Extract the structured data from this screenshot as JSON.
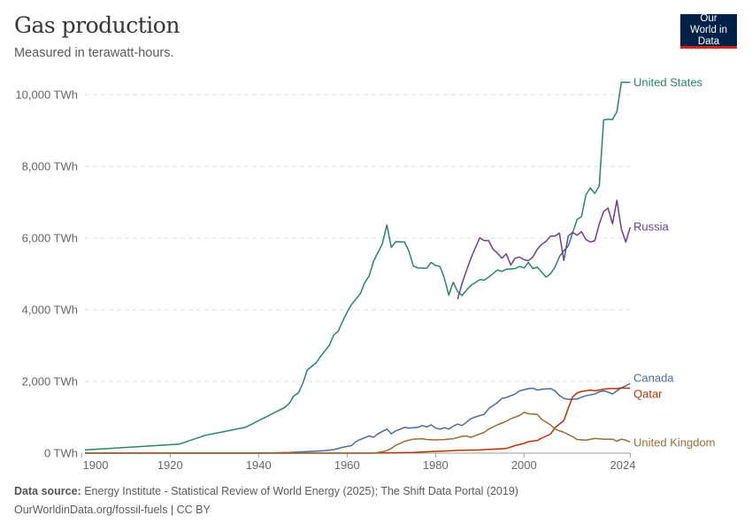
{
  "header": {
    "title": "Gas production",
    "subtitle": "Measured in terawatt-hours.",
    "logo": "Our World in Data"
  },
  "footer": {
    "source_label": "Data source:",
    "source": "Energy Institute - Statistical Review of World Energy (2025); The Shift Data Portal (2019)",
    "url": "OurWorldinData.org/fossil-fuels | CC BY"
  },
  "chart_data": {
    "type": "line",
    "title": "Gas production",
    "subtitle": "Measured in terawatt-hours.",
    "unit": "TWh",
    "xlim": [
      1900,
      2024
    ],
    "ylim": [
      0,
      10400
    ],
    "yticks": [
      0,
      2000,
      4000,
      6000,
      8000,
      10000
    ],
    "ytick_labels": [
      "0 TWh",
      "2,000 TWh",
      "4,000 TWh",
      "6,000 TWh",
      "8,000 TWh",
      "10,000 TWh"
    ],
    "xticks": [
      1900,
      1920,
      1940,
      1960,
      1980,
      2000,
      2024
    ],
    "xtick_labels": [
      "1900",
      "1920",
      "1940",
      "1960",
      "1980",
      "2000",
      "2024"
    ],
    "grid": "horizontal dashed",
    "legend": "inline labels at line ends (right)",
    "series": [
      {
        "name": "United States",
        "color": "#2c8465",
        "points": [
          [
            1900,
            90
          ],
          [
            1922,
            250
          ],
          [
            1928,
            500
          ],
          [
            1937,
            720
          ],
          [
            1946,
            1280
          ],
          [
            1947,
            1400
          ],
          [
            1948,
            1600
          ],
          [
            1949,
            1680
          ],
          [
            1950,
            1950
          ],
          [
            1951,
            2320
          ],
          [
            1953,
            2520
          ],
          [
            1954,
            2700
          ],
          [
            1956,
            3010
          ],
          [
            1957,
            3300
          ],
          [
            1958,
            3400
          ],
          [
            1959,
            3680
          ],
          [
            1960,
            3930
          ],
          [
            1961,
            4150
          ],
          [
            1963,
            4450
          ],
          [
            1964,
            4760
          ],
          [
            1965,
            4950
          ],
          [
            1966,
            5360
          ],
          [
            1968,
            5850
          ],
          [
            1969,
            6370
          ],
          [
            1970,
            5740
          ],
          [
            1971,
            5900
          ],
          [
            1973,
            5890
          ],
          [
            1974,
            5630
          ],
          [
            1975,
            5220
          ],
          [
            1976,
            5170
          ],
          [
            1978,
            5160
          ],
          [
            1979,
            5320
          ],
          [
            1980,
            5240
          ],
          [
            1981,
            5210
          ],
          [
            1982,
            4880
          ],
          [
            1983,
            4410
          ],
          [
            1984,
            4770
          ],
          [
            1985,
            4510
          ],
          [
            1986,
            4400
          ],
          [
            1987,
            4550
          ],
          [
            1988,
            4680
          ],
          [
            1990,
            4840
          ],
          [
            1991,
            4830
          ],
          [
            1992,
            4910
          ],
          [
            1994,
            5110
          ],
          [
            1995,
            5070
          ],
          [
            1996,
            5130
          ],
          [
            1998,
            5150
          ],
          [
            1999,
            5210
          ],
          [
            2000,
            5170
          ],
          [
            2001,
            5320
          ],
          [
            2002,
            5150
          ],
          [
            2003,
            5190
          ],
          [
            2005,
            4910
          ],
          [
            2006,
            5010
          ],
          [
            2007,
            5190
          ],
          [
            2008,
            5480
          ],
          [
            2009,
            5650
          ],
          [
            2010,
            5780
          ],
          [
            2011,
            6150
          ],
          [
            2012,
            6520
          ],
          [
            2013,
            6600
          ],
          [
            2014,
            7210
          ],
          [
            2015,
            7400
          ],
          [
            2016,
            7250
          ],
          [
            2017,
            7450
          ],
          [
            2018,
            9300
          ],
          [
            2019,
            9320
          ],
          [
            2020,
            9310
          ],
          [
            2021,
            9530
          ],
          [
            2022,
            10350
          ],
          [
            2023,
            10350
          ],
          [
            2024,
            10350
          ]
        ]
      },
      {
        "name": "Russia",
        "color": "#6d3e91",
        "points": [
          [
            1985,
            4300
          ],
          [
            1986,
            4740
          ],
          [
            1987,
            5100
          ],
          [
            1988,
            5440
          ],
          [
            1989,
            5730
          ],
          [
            1990,
            6010
          ],
          [
            1991,
            5930
          ],
          [
            1992,
            5930
          ],
          [
            1993,
            5690
          ],
          [
            1994,
            5580
          ],
          [
            1995,
            5440
          ],
          [
            1996,
            5560
          ],
          [
            1997,
            5250
          ],
          [
            1998,
            5440
          ],
          [
            1999,
            5470
          ],
          [
            2000,
            5400
          ],
          [
            2001,
            5370
          ],
          [
            2002,
            5470
          ],
          [
            2003,
            5690
          ],
          [
            2004,
            5830
          ],
          [
            2005,
            5910
          ],
          [
            2006,
            6060
          ],
          [
            2007,
            6060
          ],
          [
            2008,
            6140
          ],
          [
            2009,
            5380
          ],
          [
            2010,
            6060
          ],
          [
            2011,
            6160
          ],
          [
            2012,
            6080
          ],
          [
            2013,
            6180
          ],
          [
            2014,
            5960
          ],
          [
            2015,
            5890
          ],
          [
            2016,
            5930
          ],
          [
            2017,
            6390
          ],
          [
            2018,
            6740
          ],
          [
            2019,
            6840
          ],
          [
            2020,
            6400
          ],
          [
            2021,
            7060
          ],
          [
            2022,
            6260
          ],
          [
            2023,
            5890
          ],
          [
            2024,
            6300
          ]
        ]
      },
      {
        "name": "Canada",
        "color": "#4c6a9c",
        "points": [
          [
            1900,
            0
          ],
          [
            1940,
            0
          ],
          [
            1947,
            20
          ],
          [
            1955,
            70
          ],
          [
            1957,
            100
          ],
          [
            1959,
            160
          ],
          [
            1961,
            210
          ],
          [
            1962,
            320
          ],
          [
            1963,
            380
          ],
          [
            1965,
            480
          ],
          [
            1966,
            440
          ],
          [
            1967,
            540
          ],
          [
            1969,
            670
          ],
          [
            1970,
            540
          ],
          [
            1971,
            620
          ],
          [
            1973,
            720
          ],
          [
            1974,
            700
          ],
          [
            1976,
            720
          ],
          [
            1977,
            770
          ],
          [
            1978,
            730
          ],
          [
            1979,
            790
          ],
          [
            1980,
            700
          ],
          [
            1981,
            670
          ],
          [
            1982,
            710
          ],
          [
            1983,
            670
          ],
          [
            1984,
            750
          ],
          [
            1985,
            810
          ],
          [
            1986,
            770
          ],
          [
            1987,
            860
          ],
          [
            1988,
            960
          ],
          [
            1990,
            1050
          ],
          [
            1991,
            1080
          ],
          [
            1992,
            1240
          ],
          [
            1994,
            1410
          ],
          [
            1995,
            1530
          ],
          [
            1996,
            1550
          ],
          [
            1998,
            1650
          ],
          [
            1999,
            1740
          ],
          [
            2001,
            1800
          ],
          [
            2002,
            1810
          ],
          [
            2003,
            1760
          ],
          [
            2004,
            1780
          ],
          [
            2006,
            1800
          ],
          [
            2007,
            1740
          ],
          [
            2008,
            1610
          ],
          [
            2009,
            1530
          ],
          [
            2010,
            1500
          ],
          [
            2012,
            1510
          ],
          [
            2013,
            1560
          ],
          [
            2014,
            1600
          ],
          [
            2016,
            1650
          ],
          [
            2017,
            1710
          ],
          [
            2018,
            1740
          ],
          [
            2019,
            1700
          ],
          [
            2020,
            1650
          ],
          [
            2021,
            1740
          ],
          [
            2022,
            1820
          ],
          [
            2024,
            1940
          ]
        ]
      },
      {
        "name": "Qatar",
        "color": "#b13507",
        "points": [
          [
            1900,
            0
          ],
          [
            1965,
            0
          ],
          [
            1975,
            20
          ],
          [
            1980,
            50
          ],
          [
            1986,
            80
          ],
          [
            1990,
            90
          ],
          [
            1996,
            130
          ],
          [
            1998,
            210
          ],
          [
            2000,
            270
          ],
          [
            2001,
            320
          ],
          [
            2003,
            350
          ],
          [
            2004,
            420
          ],
          [
            2006,
            530
          ],
          [
            2007,
            710
          ],
          [
            2009,
            910
          ],
          [
            2010,
            1250
          ],
          [
            2011,
            1570
          ],
          [
            2012,
            1680
          ],
          [
            2013,
            1720
          ],
          [
            2015,
            1760
          ],
          [
            2016,
            1740
          ],
          [
            2018,
            1780
          ],
          [
            2019,
            1800
          ],
          [
            2021,
            1800
          ],
          [
            2022,
            1820
          ],
          [
            2024,
            1810
          ]
        ]
      },
      {
        "name": "United Kingdom",
        "color": "#996d39",
        "points": [
          [
            1900,
            0
          ],
          [
            1966,
            0
          ],
          [
            1968,
            40
          ],
          [
            1969,
            70
          ],
          [
            1970,
            130
          ],
          [
            1971,
            220
          ],
          [
            1972,
            270
          ],
          [
            1973,
            330
          ],
          [
            1974,
            360
          ],
          [
            1975,
            390
          ],
          [
            1977,
            400
          ],
          [
            1978,
            380
          ],
          [
            1980,
            370
          ],
          [
            1982,
            380
          ],
          [
            1984,
            400
          ],
          [
            1986,
            470
          ],
          [
            1987,
            480
          ],
          [
            1988,
            440
          ],
          [
            1989,
            490
          ],
          [
            1991,
            580
          ],
          [
            1992,
            670
          ],
          [
            1994,
            790
          ],
          [
            1996,
            890
          ],
          [
            1997,
            960
          ],
          [
            1999,
            1050
          ],
          [
            2000,
            1140
          ],
          [
            2001,
            1100
          ],
          [
            2003,
            1080
          ],
          [
            2004,
            940
          ],
          [
            2006,
            790
          ],
          [
            2007,
            670
          ],
          [
            2009,
            580
          ],
          [
            2010,
            520
          ],
          [
            2011,
            460
          ],
          [
            2012,
            380
          ],
          [
            2014,
            360
          ],
          [
            2016,
            410
          ],
          [
            2018,
            390
          ],
          [
            2020,
            390
          ],
          [
            2021,
            330
          ],
          [
            2022,
            390
          ],
          [
            2023,
            360
          ],
          [
            2024,
            310
          ]
        ]
      }
    ]
  }
}
